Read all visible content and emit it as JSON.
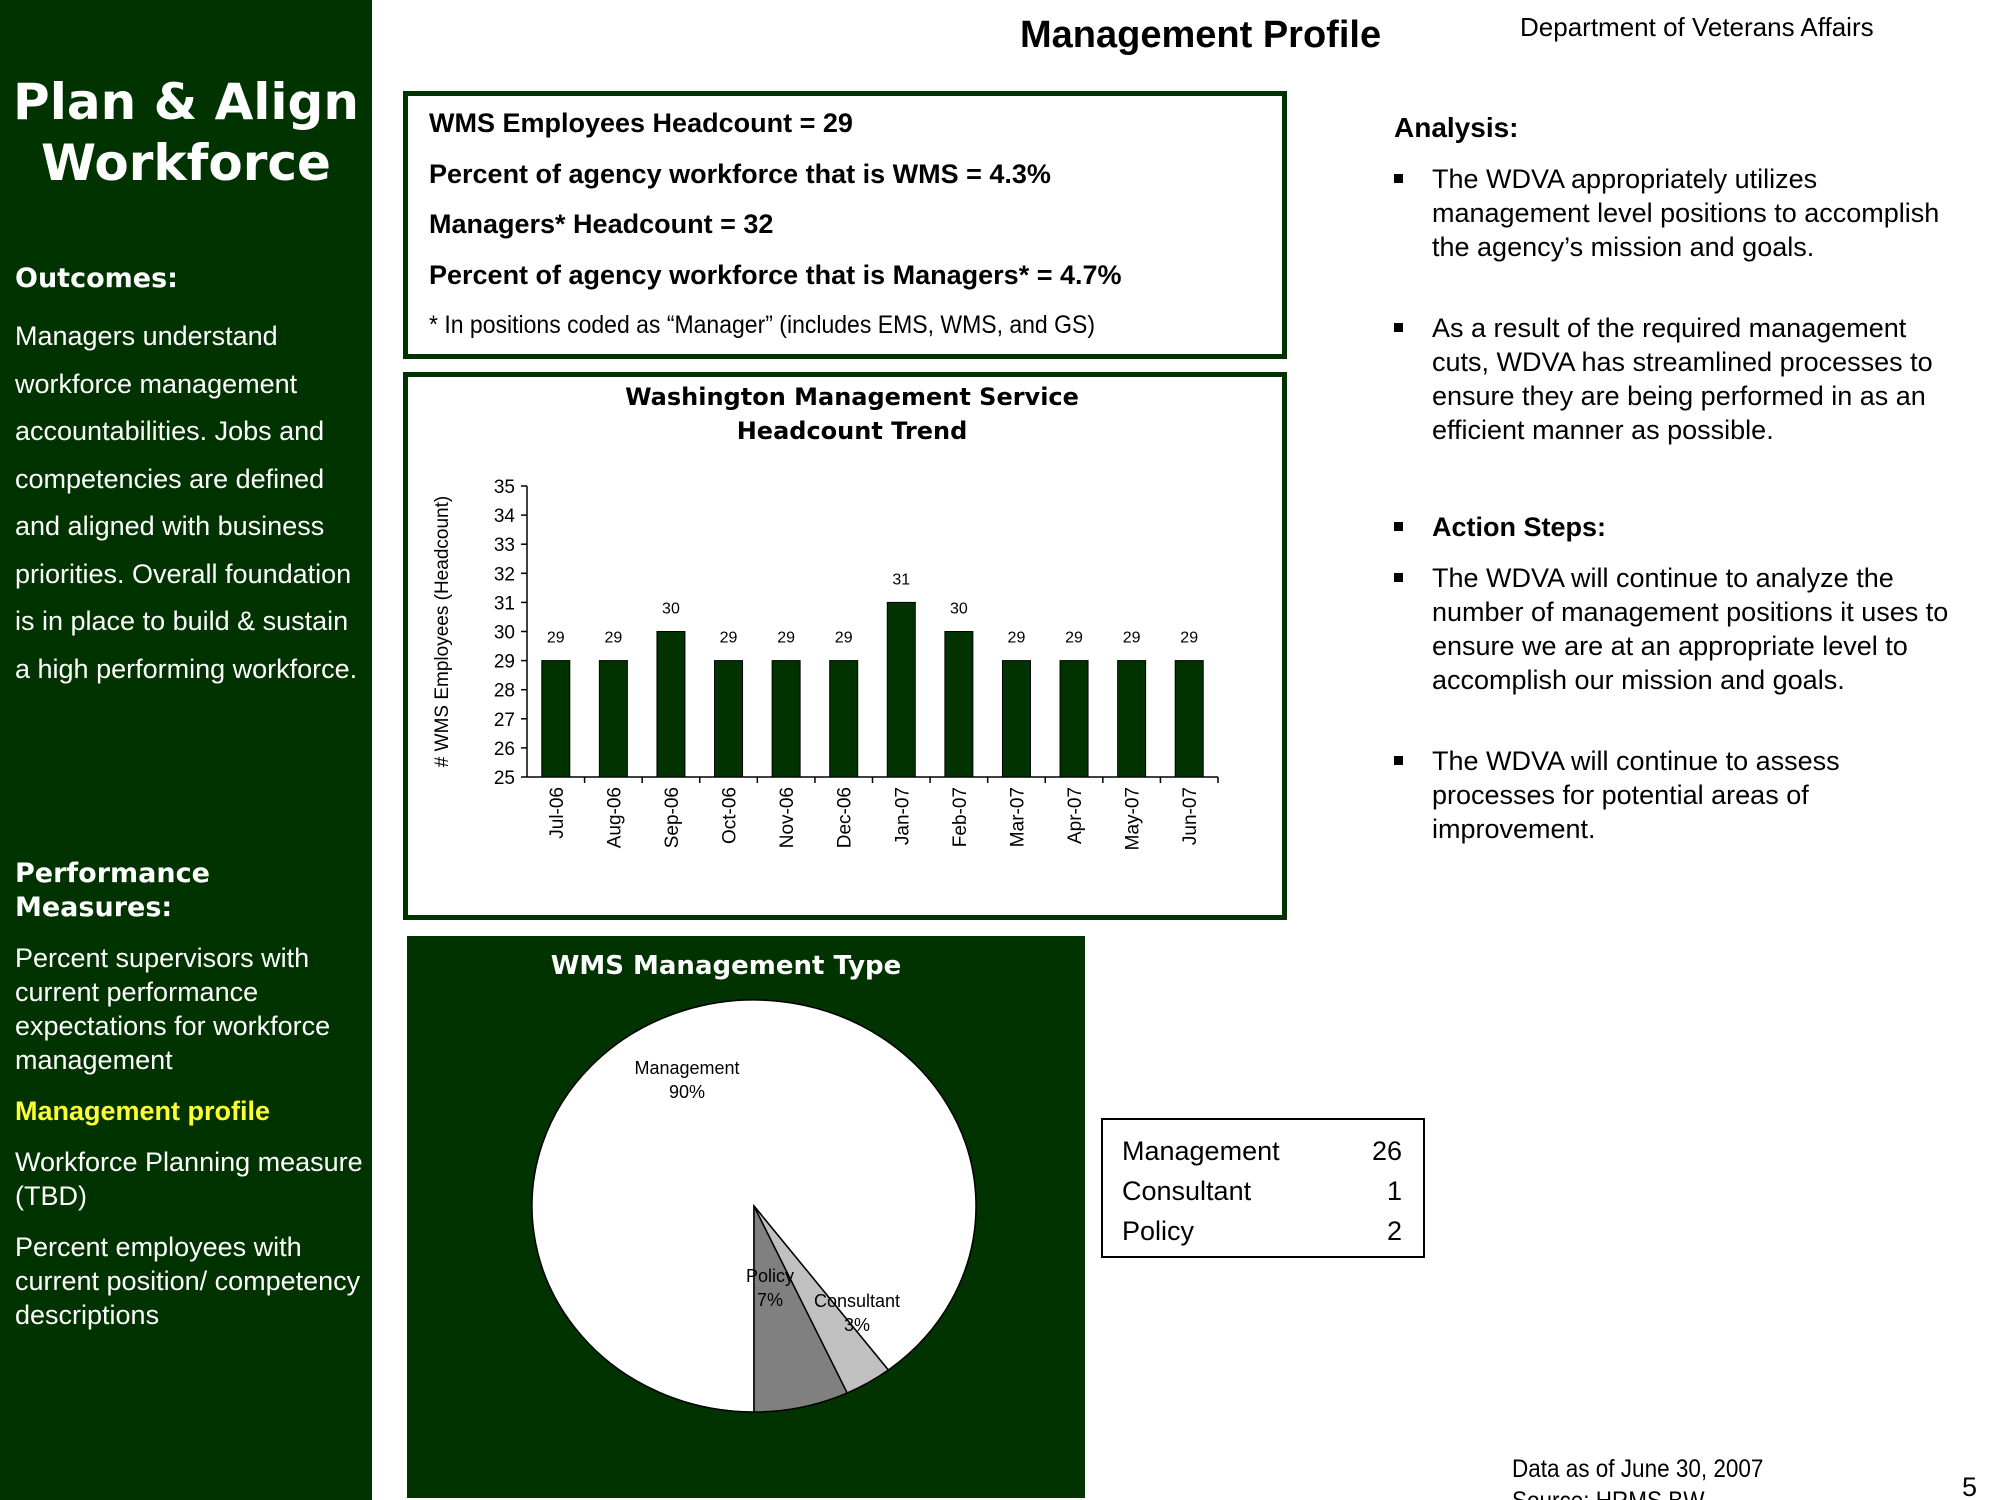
{
  "sidebar": {
    "title": "Plan & Align Workforce",
    "outcomes_heading": "Outcomes:",
    "outcomes_text": "Managers understand workforce management accountabilities. Jobs and competencies are defined and aligned with business priorities. Overall foundation is in place to build & sustain a high performing workforce.",
    "measures_heading": "Performance Measures:",
    "measures": [
      "Percent supervisors with current performance expectations for workforce management",
      "Management profile",
      "Workforce Planning measure (TBD)",
      "Percent employees with current position/ competency descriptions"
    ]
  },
  "header": {
    "title": "Management Profile",
    "department": "Department of Veterans Affairs"
  },
  "stats": {
    "line1": "WMS Employees Headcount = 29",
    "line2": "Percent of agency workforce that is WMS = 4.3%",
    "line3": "Managers* Headcount = 32",
    "line4": "Percent of agency workforce that is Managers* = 4.7%",
    "footnote": "* In positions coded as “Manager” (includes EMS, WMS, and GS)"
  },
  "chart_data": [
    {
      "type": "bar",
      "title": "Washington Management Service Headcount Trend",
      "title_lines": [
        "Washington Management Service",
        "Headcount Trend"
      ],
      "ylabel": "# WMS Employees (Headcount)",
      "xlabel": "",
      "ylim": [
        25,
        35
      ],
      "yticks": [
        25,
        26,
        27,
        28,
        29,
        30,
        31,
        32,
        33,
        34,
        35
      ],
      "categories": [
        "Jul-06",
        "Aug-06",
        "Sep-06",
        "Oct-06",
        "Nov-06",
        "Dec-06",
        "Jan-07",
        "Feb-07",
        "Mar-07",
        "Apr-07",
        "May-07",
        "Jun-07"
      ],
      "values": [
        29,
        29,
        30,
        29,
        29,
        29,
        31,
        30,
        29,
        29,
        29,
        29
      ],
      "bar_color": "#003300",
      "grid": false,
      "data_labels": true
    },
    {
      "type": "pie",
      "title": "WMS Management Type",
      "slices": [
        {
          "label": "Management",
          "value": 26,
          "percent_label": "90%",
          "color": "#ffffff"
        },
        {
          "label": "Consultant",
          "value": 1,
          "percent_label": "3%",
          "color": "#c0c0c0"
        },
        {
          "label": "Policy",
          "value": 2,
          "percent_label": "7%",
          "color": "#808080"
        }
      ],
      "background": "#003300"
    }
  ],
  "legend_table": [
    {
      "label": "Management",
      "value": "26"
    },
    {
      "label": "Consultant",
      "value": "1"
    },
    {
      "label": "Policy",
      "value": "2"
    }
  ],
  "analysis": {
    "heading": "Analysis:",
    "bullets": [
      "The WDVA appropriately utilizes management level positions to accomplish the agency’s mission and goals.",
      "As a result of the required management cuts, WDVA has streamlined processes to ensure they are being performed in as an efficient manner as possible."
    ],
    "action_heading": "Action Steps:",
    "action_bullets": [
      "The WDVA will continue to analyze the number of management positions it uses to ensure we are at an appropriate level to accomplish our mission and goals.",
      "The WDVA will continue to assess processes for potential areas of improvement."
    ]
  },
  "footer": {
    "data_as_of": "Data as of June 30, 2007",
    "source": "Source:  HRMS BW",
    "page_number": "5"
  }
}
